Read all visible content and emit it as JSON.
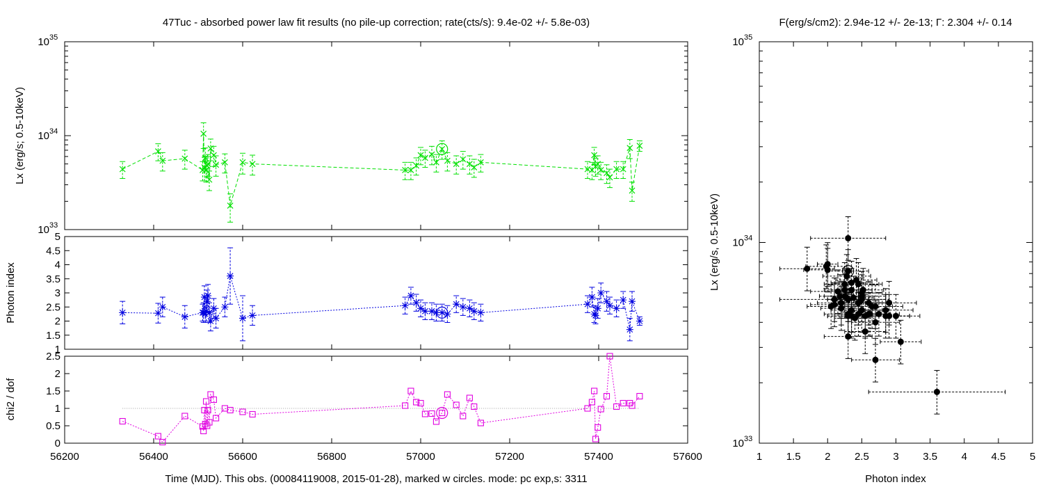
{
  "colors": {
    "lx": "#00e000",
    "photon_index": "#0000e0",
    "chi2": "#e000e0",
    "reference_line": "#a0a0a0",
    "scatter": "#000000",
    "frame": "#000000"
  },
  "chart_data": [
    {
      "type": "line",
      "panel": "lx-vs-time",
      "title": "47Tuc  - absorbed power law fit results (no pile-up correction; rate(cts/s): 9.4e-02 +/- 5.8e-03)",
      "xlabel": "",
      "ylabel": "Lx (erg/s; 0.5-10keV)",
      "xlim": [
        56200,
        57600
      ],
      "ylim": [
        1e+33,
        1e+35
      ],
      "yscale": "log",
      "y_ticks": [
        {
          "value": 1e+33,
          "mantissa": "10",
          "exp": "33"
        },
        {
          "value": 1e+34,
          "mantissa": "10",
          "exp": "34"
        },
        {
          "value": 1e+35,
          "mantissa": "10",
          "exp": "35"
        }
      ],
      "marker": "x",
      "x": [
        56330,
        56410,
        56420,
        56470,
        56510,
        56512,
        56514,
        56516,
        56518,
        56520,
        56522,
        56525,
        56528,
        56535,
        56540,
        56560,
        56572,
        56600,
        56622,
        56965,
        56978,
        56990,
        57000,
        57010,
        57025,
        57035,
        57048,
        57060,
        57080,
        57095,
        57110,
        57120,
        57135,
        57375,
        57385,
        57390,
        57393,
        57398,
        57405,
        57418,
        57425,
        57440,
        57455,
        57470,
        57475,
        57492
      ],
      "y": [
        4.4e+33,
        6.8e+33,
        5.4e+33,
        5.7e+33,
        4.3e+33,
        1.05e+34,
        4.6e+33,
        5.8e+33,
        4.3e+33,
        4.8e+33,
        5e+33,
        3.4e+33,
        7.3e+33,
        6.2e+33,
        4.9e+33,
        5.2e+33,
        1.8e+33,
        5.2e+33,
        5e+33,
        4.3e+33,
        4.3e+33,
        4.8e+33,
        6.2e+33,
        5.8e+33,
        6.3e+33,
        5.2e+33,
        7.2e+33,
        5.4e+33,
        5e+33,
        5.6e+33,
        5e+33,
        4.6e+33,
        5.2e+33,
        4.4e+33,
        4.3e+33,
        6.2e+33,
        4.7e+33,
        5e+33,
        4.3e+33,
        4e+33,
        3.6e+33,
        4.4e+33,
        4.4e+33,
        7.4e+33,
        2.6e+33,
        7.8e+33
      ],
      "y_err": [
        9e+32,
        1.4e+33,
        1.2e+33,
        1.3e+33,
        1e+33,
        3.2e+33,
        1.3e+33,
        1.6e+33,
        1.1e+33,
        1.2e+33,
        1.3e+33,
        8e+32,
        1.9e+33,
        1.5e+33,
        1.2e+33,
        1.2e+33,
        6e+32,
        1.3e+33,
        1.2e+33,
        9e+32,
        9e+32,
        1e+33,
        1.3e+33,
        1.2e+33,
        1.4e+33,
        1.1e+33,
        1.6e+33,
        1.2e+33,
        1.1e+33,
        1.2e+33,
        1.1e+33,
        1e+33,
        1.1e+33,
        9e+32,
        9e+32,
        1.3e+33,
        1e+33,
        1.1e+33,
        9e+32,
        9e+32,
        8e+32,
        9e+32,
        9e+32,
        1.7e+33,
        6e+32,
        1e+33
      ],
      "highlight": {
        "x": 57048,
        "y": 7.2e+33
      }
    },
    {
      "type": "line",
      "panel": "photon-index-vs-time",
      "xlabel": "",
      "ylabel": "Photon index",
      "xlim": [
        56200,
        57600
      ],
      "ylim": [
        1,
        5
      ],
      "y_ticks": [
        "1",
        "1.5",
        "2",
        "2.5",
        "3",
        "3.5",
        "4",
        "4.5",
        "5"
      ],
      "marker": "asterisk",
      "x": [
        56330,
        56410,
        56420,
        56470,
        56510,
        56512,
        56514,
        56516,
        56518,
        56520,
        56522,
        56525,
        56528,
        56535,
        56540,
        56560,
        56572,
        56600,
        56622,
        56965,
        56978,
        56990,
        57000,
        57010,
        57025,
        57035,
        57048,
        57060,
        57080,
        57095,
        57110,
        57120,
        57135,
        57375,
        57385,
        57390,
        57393,
        57398,
        57405,
        57418,
        57425,
        57440,
        57455,
        57470,
        57475,
        57492
      ],
      "y": [
        2.3,
        2.28,
        2.5,
        2.15,
        2.3,
        2.3,
        2.85,
        2.25,
        2.35,
        2.7,
        2.9,
        2.3,
        2.0,
        2.45,
        2.1,
        2.5,
        3.6,
        2.1,
        2.2,
        2.55,
        2.9,
        2.65,
        2.45,
        2.35,
        2.35,
        2.3,
        2.3,
        2.25,
        2.6,
        2.5,
        2.45,
        2.35,
        2.3,
        2.6,
        2.85,
        2.25,
        2.2,
        2.45,
        3.0,
        2.7,
        2.55,
        2.45,
        2.75,
        1.7,
        2.7,
        2.0
      ],
      "y_err": [
        0.4,
        0.35,
        0.35,
        0.4,
        0.3,
        0.35,
        0.4,
        0.3,
        0.35,
        0.4,
        0.4,
        0.35,
        0.35,
        0.35,
        0.35,
        0.35,
        1.0,
        0.8,
        0.35,
        0.3,
        0.3,
        0.3,
        0.3,
        0.3,
        0.3,
        0.3,
        0.3,
        0.3,
        0.3,
        0.3,
        0.3,
        0.3,
        0.3,
        0.3,
        0.35,
        0.3,
        0.3,
        0.35,
        0.35,
        0.35,
        0.3,
        0.3,
        0.3,
        0.4,
        0.35,
        0.15
      ],
      "highlight": {
        "x": 57048,
        "y": 2.3
      }
    },
    {
      "type": "line",
      "panel": "chi2-vs-time",
      "xlabel": "Time (MJD). This obs. (00084119008, 2015-01-28), marked w circles. mode: pc exp,s: 3311",
      "ylabel": "chi2 / dof",
      "xlim": [
        56200,
        57600
      ],
      "ylim": [
        0,
        2.5
      ],
      "x_ticks": [
        "56200",
        "56400",
        "56600",
        "56800",
        "57000",
        "57200",
        "57400",
        "57600"
      ],
      "y_ticks": [
        "0",
        "0.5",
        "1",
        "1.5",
        "2",
        "2.5"
      ],
      "reference_line": 1,
      "marker": "square",
      "x": [
        56330,
        56410,
        56420,
        56470,
        56510,
        56512,
        56514,
        56516,
        56518,
        56520,
        56522,
        56525,
        56528,
        56535,
        56540,
        56560,
        56572,
        56600,
        56622,
        56965,
        56978,
        56990,
        57000,
        57010,
        57025,
        57035,
        57048,
        57060,
        57080,
        57095,
        57110,
        57120,
        57135,
        57375,
        57385,
        57390,
        57393,
        57398,
        57405,
        57418,
        57425,
        57440,
        57455,
        57470,
        57475,
        57492
      ],
      "y": [
        0.63,
        0.2,
        0.03,
        0.78,
        0.48,
        0.35,
        0.95,
        0.55,
        1.2,
        0.5,
        0.95,
        0.6,
        1.4,
        1.25,
        0.72,
        1.0,
        0.95,
        0.9,
        0.83,
        1.08,
        1.5,
        1.18,
        1.15,
        0.84,
        0.85,
        0.62,
        0.87,
        1.4,
        1.1,
        0.78,
        1.3,
        1.05,
        0.58,
        1.0,
        1.18,
        1.5,
        0.12,
        0.45,
        0.98,
        1.35,
        2.5,
        1.05,
        1.15,
        1.15,
        1.08,
        1.35
      ],
      "highlight": {
        "x": 57048,
        "y": 0.87
      }
    },
    {
      "type": "scatter",
      "panel": "lx-vs-photon-index",
      "title": "F(erg/s/cm2): 2.94e-12 +/- 2e-13; Γ: 2.304 +/- 0.14",
      "xlabel": "Photon index",
      "ylabel": "Lx (erg/s, 0.5-10keV)",
      "xlim": [
        1,
        5
      ],
      "ylim": [
        1e+33,
        1e+35
      ],
      "yscale": "log",
      "x_ticks": [
        "1",
        "1.5",
        "2",
        "2.5",
        "3",
        "3.5",
        "4",
        "4.5",
        "5"
      ],
      "y_ticks": [
        {
          "value": 1e+33,
          "mantissa": "10",
          "exp": "33"
        },
        {
          "value": 1e+34,
          "mantissa": "10",
          "exp": "34"
        },
        {
          "value": 1e+35,
          "mantissa": "10",
          "exp": "35"
        }
      ],
      "x": [
        2.3,
        2.28,
        2.5,
        2.15,
        2.3,
        2.3,
        2.85,
        2.25,
        2.35,
        2.7,
        2.9,
        2.3,
        2.0,
        2.45,
        2.1,
        2.5,
        3.6,
        2.1,
        2.2,
        2.55,
        2.9,
        2.65,
        2.45,
        2.35,
        2.35,
        2.3,
        2.3,
        2.25,
        2.6,
        2.5,
        2.45,
        2.35,
        2.3,
        2.6,
        2.85,
        2.25,
        2.2,
        2.45,
        3.0,
        2.7,
        2.55,
        2.45,
        2.75,
        1.7,
        2.7,
        2.0,
        3.07,
        2.05,
        1.98,
        2.42,
        2.52,
        2.18,
        2.4,
        2.62,
        2.38,
        2.5
      ],
      "y": [
        4.4e+33,
        6.8e+33,
        5.4e+33,
        5.7e+33,
        4.3e+33,
        1.05e+34,
        4.6e+33,
        5.8e+33,
        4.3e+33,
        4.8e+33,
        5e+33,
        3.4e+33,
        7.3e+33,
        6.2e+33,
        4.9e+33,
        5.2e+33,
        1.8e+33,
        5.2e+33,
        5e+33,
        4.3e+33,
        4.3e+33,
        4.8e+33,
        6.2e+33,
        5.8e+33,
        6.3e+33,
        5.2e+33,
        7.2e+33,
        5.4e+33,
        5e+33,
        5.6e+33,
        5e+33,
        4.6e+33,
        5.2e+33,
        4.4e+33,
        4.3e+33,
        6.2e+33,
        4.7e+33,
        5e+33,
        4.3e+33,
        4e+33,
        3.6e+33,
        4.4e+33,
        4.4e+33,
        7.4e+33,
        2.6e+33,
        7.8e+33,
        3.2e+33,
        4.8e+33,
        7.6e+33,
        6.5e+33,
        5.8e+33,
        5.4e+33,
        4.2e+33,
        4.4e+33,
        5.3e+33,
        4.6e+33
      ],
      "x_err": [
        0.35,
        0.35,
        0.35,
        0.4,
        0.3,
        0.55,
        0.4,
        0.3,
        0.35,
        0.4,
        0.4,
        0.35,
        0.35,
        0.35,
        0.35,
        0.35,
        1.0,
        0.8,
        0.35,
        0.3,
        0.3,
        0.3,
        0.3,
        0.3,
        0.3,
        0.3,
        0.3,
        0.3,
        0.3,
        0.3,
        0.3,
        0.3,
        0.3,
        0.3,
        0.35,
        0.3,
        0.3,
        0.35,
        0.35,
        0.35,
        0.3,
        0.3,
        0.3,
        0.4,
        0.35,
        0.15,
        0.3,
        0.35,
        0.3,
        0.3,
        0.3,
        0.3,
        0.3,
        0.3,
        0.3,
        0.3
      ],
      "highlight": {
        "x": 2.3,
        "y": 7.2e+33
      }
    }
  ]
}
